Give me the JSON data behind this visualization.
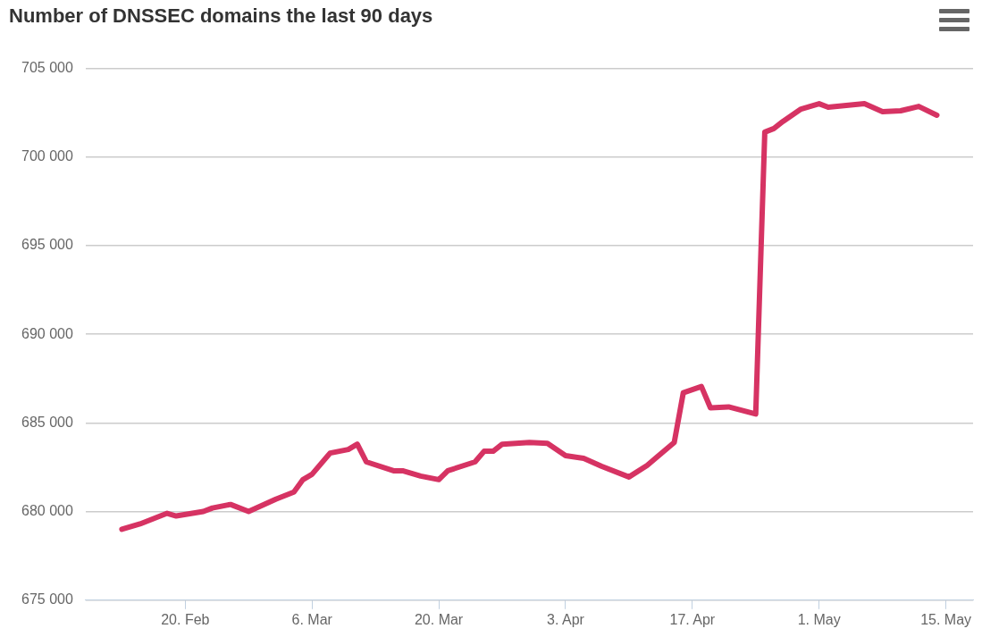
{
  "chart_data": {
    "type": "line",
    "title": "Number of DNSSEC domains the last 90 days",
    "x": [
      "--02-13",
      "--02-15",
      "--02-18",
      "--02-19",
      "--02-22",
      "--02-23",
      "--02-25",
      "--02-27",
      "--03-02",
      "--03-04",
      "--03-05",
      "--03-06",
      "--03-08",
      "--03-10",
      "--03-11",
      "--03-12",
      "--03-15",
      "--03-16",
      "--03-18",
      "--03-20",
      "--03-21",
      "--03-24",
      "--03-25",
      "--03-26",
      "--03-27",
      "--03-30",
      "--04-01",
      "--04-03",
      "--04-05",
      "--04-07",
      "--04-10",
      "--04-12",
      "--04-15",
      "--04-16",
      "--04-18",
      "--04-19",
      "--04-21",
      "--04-24",
      "--04-25",
      "--04-26",
      "--04-27",
      "--04-29",
      "--05-01",
      "--05-02",
      "--05-06",
      "--05-08",
      "--05-10",
      "--05-12",
      "--05-14"
    ],
    "series": [
      {
        "color": "#d63363",
        "values": [
          679000,
          679300,
          679900,
          679750,
          680000,
          680200,
          680400,
          680000,
          680700,
          681100,
          681800,
          682100,
          683300,
          683500,
          683800,
          682800,
          682300,
          682300,
          682000,
          681800,
          682300,
          682800,
          683400,
          683400,
          683800,
          683900,
          683850,
          683150,
          683000,
          682550,
          681950,
          682600,
          683900,
          686700,
          687050,
          685850,
          685900,
          685500,
          701400,
          701600,
          702000,
          702700,
          703000,
          702800,
          703000,
          702550,
          702600,
          702850,
          702350
        ]
      }
    ],
    "xlim": [
      "--02-09",
      "--05-18"
    ],
    "xticks": [
      {
        "value": "--02-20",
        "label": "20. Feb"
      },
      {
        "value": "--03-06",
        "label": "6. Mar"
      },
      {
        "value": "--03-20",
        "label": "20. Mar"
      },
      {
        "value": "--04-03",
        "label": "3. Apr"
      },
      {
        "value": "--04-17",
        "label": "17. Apr"
      },
      {
        "value": "--05-01",
        "label": "1. May"
      },
      {
        "value": "--05-15",
        "label": "15. May"
      }
    ],
    "ylim": [
      675000,
      705000
    ],
    "yticks": [
      {
        "value": 675000,
        "label": "675 000"
      },
      {
        "value": 680000,
        "label": "680 000"
      },
      {
        "value": 685000,
        "label": "685 000"
      },
      {
        "value": 690000,
        "label": "690 000"
      },
      {
        "value": 695000,
        "label": "695 000"
      },
      {
        "value": 700000,
        "label": "700 000"
      },
      {
        "value": 705000,
        "label": "705 000"
      }
    ],
    "grid": "y",
    "legend": false,
    "marker": "none",
    "line_style": "solid"
  }
}
